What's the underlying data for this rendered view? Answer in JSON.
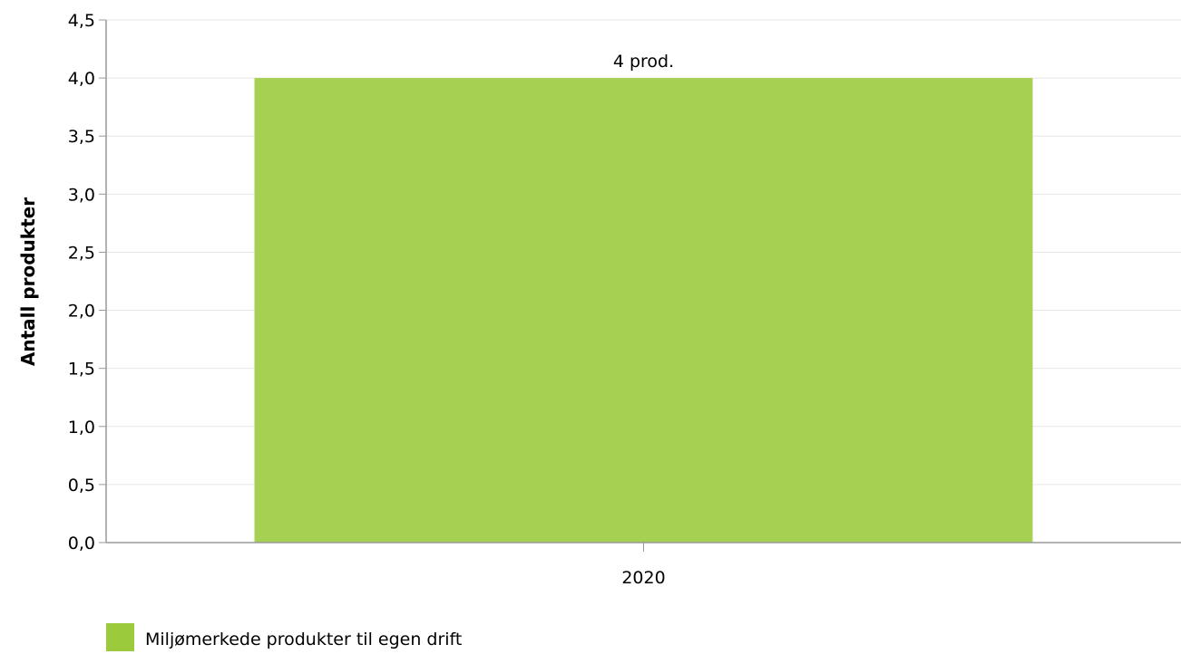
{
  "chart_data": {
    "type": "bar",
    "categories": [
      "2020"
    ],
    "series": [
      {
        "name": "Miljømerkede produkter til egen drift",
        "values": [
          4
        ],
        "data_labels": [
          "4 prod."
        ],
        "color": "#a5d052"
      }
    ],
    "title": "",
    "xlabel": "",
    "ylabel": "Antall produkter",
    "ylim": [
      0,
      4.5
    ],
    "y_ticks": [
      "0,0",
      "0,5",
      "1,0",
      "1,5",
      "2,0",
      "2,5",
      "3,0",
      "3,5",
      "4,0",
      "4,5"
    ],
    "grid": true,
    "legend_position": "bottom-left"
  },
  "colors": {
    "bar": "#a5d052",
    "legend_swatch": "#9bcb3c"
  }
}
